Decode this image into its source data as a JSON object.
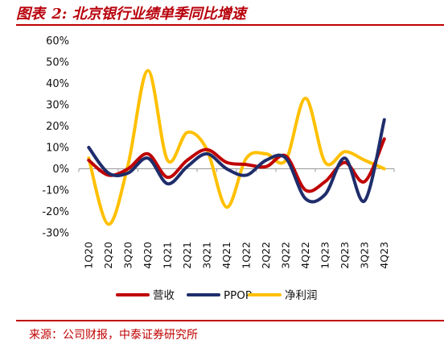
{
  "figure": {
    "title_prefix": "图表",
    "title_number": "2:",
    "title_text": "北京银行业绩单季同比增速",
    "source": "来源：公司财报，中泰证券研究所"
  },
  "colors": {
    "title": "#b8000b",
    "营收": "#c00000",
    "PPOP": "#1f2d6b",
    "净利润": "#ffc000"
  },
  "chart_data": {
    "type": "line",
    "smooth": true,
    "categories": [
      "1Q20",
      "2Q20",
      "3Q20",
      "4Q20",
      "1Q21",
      "2Q21",
      "3Q21",
      "4Q21",
      "1Q22",
      "2Q22",
      "3Q22",
      "4Q22",
      "1Q23",
      "2Q23",
      "3Q23",
      "4Q23"
    ],
    "series": [
      {
        "name": "营收",
        "color": "#c00000",
        "values": [
          4,
          -3,
          0,
          7,
          -4,
          4,
          9,
          3,
          2,
          1,
          6,
          -10,
          -6,
          3,
          -6,
          14
        ]
      },
      {
        "name": "PPOP",
        "color": "#1f2d6b",
        "values": [
          10,
          -2,
          -2,
          5,
          -7,
          1,
          7,
          0,
          -3,
          4,
          5,
          -14,
          -12,
          5,
          -15,
          23
        ]
      },
      {
        "name": "净利润",
        "color": "#ffc000",
        "values": [
          5,
          -26,
          2,
          46,
          4,
          17,
          9,
          -18,
          5,
          7,
          4,
          33,
          3,
          8,
          4,
          0
        ]
      }
    ],
    "ylim": [
      -30,
      60
    ],
    "yticks": [
      -30,
      -20,
      -10,
      0,
      10,
      20,
      30,
      40,
      50,
      60
    ],
    "ytick_labels": [
      "-30%",
      "-20%",
      "-10%",
      "0%",
      "10%",
      "20%",
      "30%",
      "40%",
      "50%",
      "60%"
    ],
    "grid": false,
    "legend_position": "bottom",
    "title": "",
    "xlabel": "",
    "ylabel": ""
  }
}
